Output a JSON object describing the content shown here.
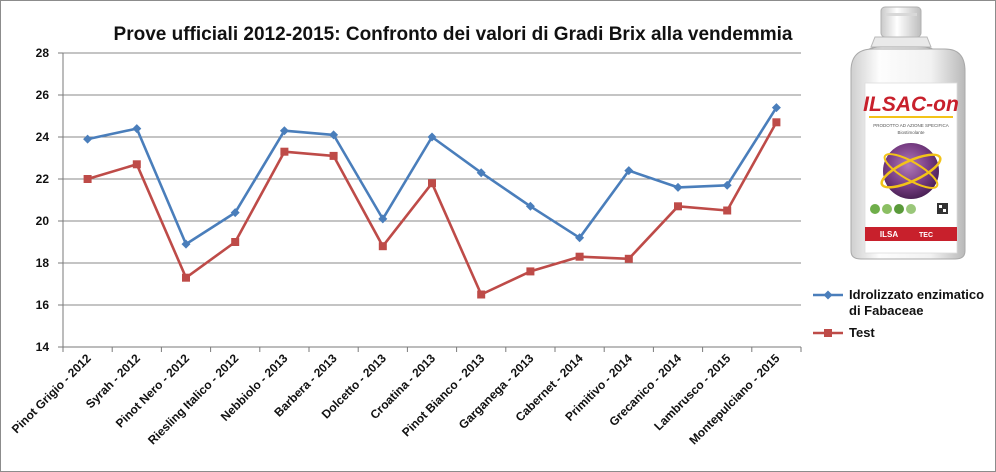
{
  "chart_data": {
    "type": "line",
    "title": "Prove ufficiali 2012-2015: Confronto dei valori di Gradi Brix alla vendemmia",
    "xlabel": "",
    "ylabel": "",
    "ylim": [
      14,
      28
    ],
    "yticks": [
      14,
      16,
      18,
      20,
      22,
      24,
      26,
      28
    ],
    "grid": true,
    "legend_position": "right",
    "categories": [
      "Pinot Grigio - 2012",
      "Syrah - 2012",
      "Pinot Nero - 2012",
      "Riesling Italico - 2012",
      "Nebbiolo - 2013",
      "Barbera - 2013",
      "Dolcetto - 2013",
      "Croatina - 2013",
      "Pinot Bianco - 2013",
      "Garganega - 2013",
      "Cabernet - 2014",
      "Primitivo - 2014",
      "Grecanico - 2014",
      "Lambrusco - 2015",
      "Montepulciano - 2015"
    ],
    "series": [
      {
        "name": "Idrolizzato enzimatico di Fabaceae",
        "legend_lines": [
          "Idrolizzato enzimatico",
          "di Fabaceae"
        ],
        "color": "#4a7ebb",
        "marker": "diamond",
        "values": [
          23.9,
          24.4,
          18.9,
          20.4,
          24.3,
          24.1,
          20.1,
          24.0,
          22.3,
          20.7,
          19.2,
          22.4,
          21.6,
          21.7,
          25.4
        ]
      },
      {
        "name": "Test",
        "legend_lines": [
          "Test"
        ],
        "color": "#be4b48",
        "marker": "square",
        "values": [
          22.0,
          22.7,
          17.3,
          19.0,
          23.3,
          23.1,
          18.8,
          21.8,
          16.5,
          17.6,
          18.3,
          18.2,
          20.7,
          20.5,
          24.7
        ]
      }
    ]
  },
  "product": {
    "brand": "ILSAC-on",
    "caption_line1": "PRODOTTO AD AZIONE SPECIFICA",
    "caption_line2": "Biostimolante",
    "band_left": "ILSA",
    "band_right": "TEC",
    "colors": {
      "brand_red": "#c8202c",
      "brand_yellow": "#f2c318",
      "body_white": "#f7f7f7"
    }
  }
}
